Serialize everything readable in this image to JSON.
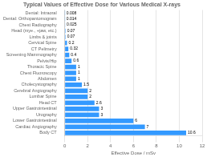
{
  "chart_data": {
    "type": "bar",
    "orientation": "horizontal",
    "title": "Typical Values of Effective Dose for Various Medical X-rays",
    "xlabel": "Effective Dose / mSv",
    "categories": [
      "Dental: Intraoral",
      "Dental: Orthopantomogram",
      "Chest Radiography",
      "Head (mye., +jaw, etc.)",
      "Limbs & joints",
      "Cervical Spine",
      "CT Pelimetry",
      "Screening Mammography",
      "Pelvis/Hip",
      "Thoracic Spine",
      "Chest Fluoroscopy",
      "Abdomen",
      "Cholecystography",
      "Cerebral Angiography",
      "Lumbar Spine",
      "Head CT",
      "Upper Gastrointestinal",
      "Urography",
      "Lower Gastrointestinal",
      "Cardiac Angiography",
      "Body CT"
    ],
    "values": [
      0.008,
      0.014,
      0.025,
      0.07,
      0.07,
      0.2,
      0.32,
      0.4,
      0.6,
      1,
      1,
      1,
      1.5,
      2,
      2,
      2.6,
      3,
      3,
      6,
      7,
      10.6
    ],
    "color": "#3399ff",
    "xlim": [
      0,
      12
    ],
    "xticks": [
      0,
      2,
      4,
      6,
      8,
      10,
      12
    ],
    "grid": true,
    "data_labels": true
  }
}
